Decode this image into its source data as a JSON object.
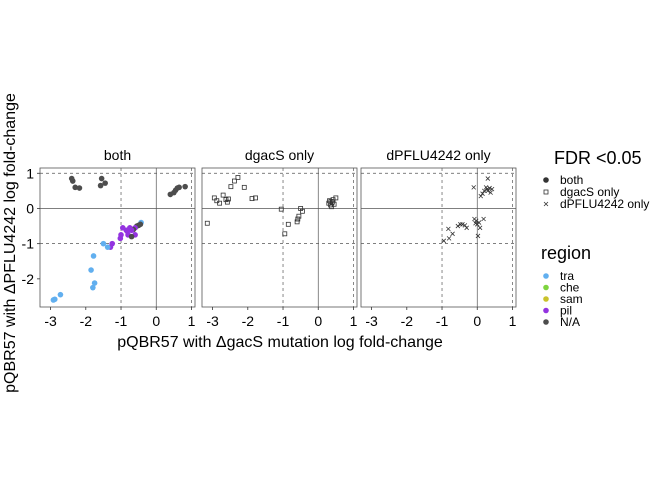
{
  "chart_data": {
    "type": "scatter",
    "facet_titles": [
      "both",
      "dgacS only",
      "dPFLU4242 only"
    ],
    "xlabel": "pQBR57 with ΔgacS mutation log fold-change",
    "ylabel": "pQBR57 with ΔPFLU4242 log fold-change",
    "xlim": [
      -3.3,
      1.1
    ],
    "ylim": [
      -2.8,
      1.15
    ],
    "x_ticks": [
      -3,
      -2,
      -1,
      0,
      1
    ],
    "x_tick_labels": [
      "-3",
      "-2",
      "-1",
      "0",
      "1"
    ],
    "y_ticks": [
      1,
      0,
      -1,
      -2
    ],
    "y_tick_labels": [
      "1",
      "0",
      "-1",
      "-2"
    ],
    "reference_lines": {
      "solid": [
        0
      ],
      "dashed": [
        -1,
        1
      ]
    },
    "grid": false,
    "legend_shape": {
      "title": "FDR <0.05",
      "entries": [
        {
          "label": "both",
          "shape": "circle"
        },
        {
          "label": "dgacS only",
          "shape": "square"
        },
        {
          "label": "dPFLU4242 only",
          "shape": "cross"
        }
      ]
    },
    "legend_color": {
      "title": "region",
      "entries": [
        {
          "label": "tra",
          "color": "#61AFEF"
        },
        {
          "label": "che",
          "color": "#7ED43E"
        },
        {
          "label": "sam",
          "color": "#C9C22B"
        },
        {
          "label": "pil",
          "color": "#9333E0"
        },
        {
          "label": "N/A",
          "color": "#4D4D4D"
        }
      ]
    },
    "legend_placement": "right",
    "panels": [
      {
        "title": "both",
        "shape": "circle",
        "points": [
          [
            -2.4,
            0.85,
            "N/A"
          ],
          [
            -2.37,
            0.78,
            "N/A"
          ],
          [
            -2.3,
            0.6,
            "N/A"
          ],
          [
            -2.18,
            0.58,
            "N/A"
          ],
          [
            -1.55,
            0.85,
            "N/A"
          ],
          [
            -1.58,
            0.65,
            "N/A"
          ],
          [
            -1.45,
            0.72,
            "N/A"
          ],
          [
            0.4,
            0.4,
            "N/A"
          ],
          [
            0.5,
            0.45,
            "N/A"
          ],
          [
            0.55,
            0.52,
            "N/A"
          ],
          [
            0.6,
            0.58,
            "N/A"
          ],
          [
            0.65,
            0.6,
            "N/A"
          ],
          [
            0.82,
            0.62,
            "N/A"
          ],
          [
            -0.43,
            -0.4,
            "tra"
          ],
          [
            -0.45,
            -0.45,
            "N/A"
          ],
          [
            -0.5,
            -0.48,
            "N/A"
          ],
          [
            -0.55,
            -0.5,
            "N/A"
          ],
          [
            -0.6,
            -0.55,
            "pil"
          ],
          [
            -0.65,
            -0.6,
            "N/A"
          ],
          [
            -0.7,
            -0.62,
            "pil"
          ],
          [
            -0.75,
            -0.55,
            "pil"
          ],
          [
            -0.8,
            -0.75,
            "pil"
          ],
          [
            -0.82,
            -0.65,
            "pil"
          ],
          [
            -0.85,
            -0.62,
            "pil"
          ],
          [
            -0.6,
            -0.75,
            "pil"
          ],
          [
            -0.7,
            -0.8,
            "N/A"
          ],
          [
            -0.95,
            -0.55,
            "pil"
          ],
          [
            -1.0,
            -0.75,
            "pil"
          ],
          [
            -1.02,
            -0.85,
            "pil"
          ],
          [
            -1.25,
            -1.0,
            "pil"
          ],
          [
            -1.3,
            -1.1,
            "pil"
          ],
          [
            -1.38,
            -1.1,
            "tra"
          ],
          [
            -1.5,
            -1.0,
            "tra"
          ],
          [
            -1.78,
            -1.35,
            "tra"
          ],
          [
            -1.85,
            -1.75,
            "tra"
          ],
          [
            -1.75,
            -2.12,
            "tra"
          ],
          [
            -1.8,
            -2.25,
            "tra"
          ],
          [
            -2.72,
            -2.45,
            "tra"
          ],
          [
            -2.88,
            -2.58,
            "tra"
          ],
          [
            -2.92,
            -2.6,
            "tra"
          ]
        ]
      },
      {
        "title": "dgacS only",
        "shape": "square",
        "points": [
          [
            -3.15,
            -0.42
          ],
          [
            -2.95,
            0.3
          ],
          [
            -2.88,
            0.22
          ],
          [
            -2.8,
            0.15
          ],
          [
            -2.7,
            0.38
          ],
          [
            -2.62,
            0.25
          ],
          [
            -2.58,
            0.18
          ],
          [
            -2.55,
            0.27
          ],
          [
            -2.48,
            0.62
          ],
          [
            -2.38,
            0.78
          ],
          [
            -2.28,
            0.88
          ],
          [
            -2.1,
            0.6
          ],
          [
            -1.88,
            0.28
          ],
          [
            -1.78,
            0.3
          ],
          [
            -1.05,
            -0.02
          ],
          [
            -0.95,
            -0.72
          ],
          [
            -0.85,
            -0.45
          ],
          [
            -0.6,
            -0.38
          ],
          [
            -0.58,
            -0.3
          ],
          [
            -0.55,
            -0.22
          ],
          [
            -0.5,
            0.0
          ],
          [
            -0.45,
            -0.08
          ],
          [
            0.3,
            0.15
          ],
          [
            0.32,
            0.22
          ],
          [
            0.35,
            0.1
          ],
          [
            0.36,
            0.2
          ],
          [
            0.38,
            0.05
          ],
          [
            0.4,
            0.18
          ],
          [
            0.42,
            0.25
          ],
          [
            0.45,
            0.12
          ],
          [
            0.5,
            0.3
          ]
        ]
      },
      {
        "title": "dPFLU4242 only",
        "shape": "cross",
        "points": [
          [
            -0.95,
            -0.92
          ],
          [
            -0.82,
            -0.58
          ],
          [
            -0.8,
            -0.85
          ],
          [
            -0.55,
            -0.5
          ],
          [
            -0.48,
            -0.45
          ],
          [
            -0.42,
            -0.45
          ],
          [
            -0.35,
            -0.48
          ],
          [
            -0.3,
            -0.55
          ],
          [
            -0.08,
            -0.3
          ],
          [
            -0.05,
            -0.42
          ],
          [
            -0.03,
            -0.35
          ],
          [
            0.0,
            -0.45
          ],
          [
            0.05,
            -0.4
          ],
          [
            0.08,
            -0.55
          ],
          [
            0.1,
            0.35
          ],
          [
            0.15,
            0.42
          ],
          [
            0.2,
            0.5
          ],
          [
            0.25,
            0.6
          ],
          [
            0.28,
            0.55
          ],
          [
            0.3,
            0.5
          ],
          [
            0.35,
            0.58
          ],
          [
            0.38,
            0.45
          ],
          [
            0.42,
            0.55
          ],
          [
            -0.1,
            0.6
          ],
          [
            0.3,
            0.85
          ],
          [
            0.18,
            -0.3
          ],
          [
            0.02,
            -0.78
          ],
          [
            -0.7,
            -0.72
          ]
        ]
      }
    ]
  }
}
